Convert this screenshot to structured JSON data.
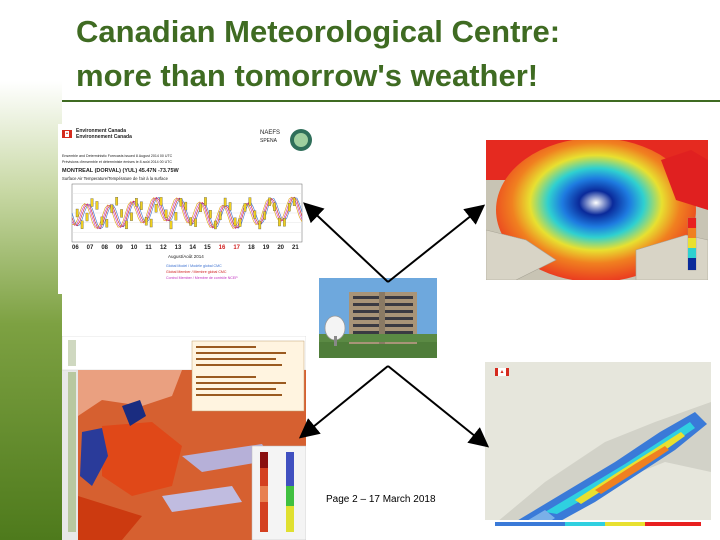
{
  "slide": {
    "title_line1": "Canadian Meteorological Centre:",
    "title_line2": "more than tomorrow's weather!",
    "footer": "Page 2 – 17 March 2018"
  },
  "meteogram": {
    "agency_en": "Environment Canada",
    "agency_fr": "Environnement Canada",
    "naefs_logo": "NAEFS",
    "naefs_sub": "SPENA",
    "header_line1": "Ensemble and Deterministic Forecasts issued 8 August 2014 00 UTC",
    "header_line2": "Prévisions d'ensemble et déterministe émises le 8 août 2014 00 UTC",
    "station": "MONTREAL (DORVAL) (YUL) 45.47N -73.75W",
    "subtitle": "Surface Air Temperature/Température de l'air à la surface",
    "days": [
      "06",
      "07",
      "08",
      "09",
      "10",
      "11",
      "12",
      "13",
      "14",
      "15",
      "16",
      "17",
      "18",
      "19",
      "20",
      "21"
    ],
    "month": "August/Août 2014",
    "legend": [
      "Global Model / Modèle global CMC",
      "Global Member / Membre global CMC",
      "Control Member / Membre de contrôle NCEP"
    ]
  },
  "colors": {
    "title": "#3f6b22",
    "rule": "#3f6b22",
    "arrow": "#000000"
  },
  "icons": {
    "canada_flag": "canada-flag-icon",
    "satellite_dish": "satellite-dish-icon"
  }
}
